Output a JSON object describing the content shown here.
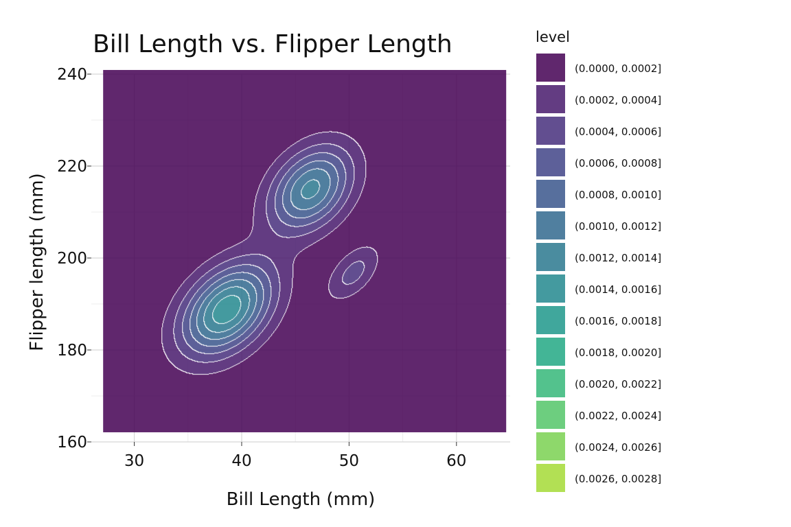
{
  "chart_data": {
    "type": "contour",
    "title": "Bill Length vs. Flipper Length",
    "xlabel": "Bill Length (mm)",
    "ylabel": "Flipper length (mm)",
    "xlim": [
      26,
      65
    ],
    "ylim": [
      160,
      240
    ],
    "xticks": [
      30,
      40,
      50,
      60
    ],
    "yticks": [
      160,
      180,
      200,
      220,
      240
    ],
    "grid": true,
    "density_extent": {
      "x": [
        27.1,
        64.6
      ],
      "y": [
        162.1,
        240.9
      ]
    },
    "legend": {
      "title": "level",
      "position": "right",
      "entries": [
        {
          "label": "(0.0000, 0.0002]",
          "color": "#440154"
        },
        {
          "label": "(0.0002, 0.0004]",
          "color": "#481a6c"
        },
        {
          "label": "(0.0004, 0.0006]",
          "color": "#472f7d"
        },
        {
          "label": "(0.0006, 0.0008]",
          "color": "#414487"
        },
        {
          "label": "(0.0008, 0.0010]",
          "color": "#39568c"
        },
        {
          "label": "(0.0010, 0.0012]",
          "color": "#31688e"
        },
        {
          "label": "(0.0012, 0.0014]",
          "color": "#2a788e"
        },
        {
          "label": "(0.0014, 0.0016]",
          "color": "#23888e"
        },
        {
          "label": "(0.0016, 0.0018]",
          "color": "#1f988b"
        },
        {
          "label": "(0.0018, 0.0020]",
          "color": "#22a884"
        },
        {
          "label": "(0.0020, 0.0022]",
          "color": "#35b779"
        },
        {
          "label": "(0.0022, 0.0024]",
          "color": "#54c568"
        },
        {
          "label": "(0.0024, 0.0026]",
          "color": "#7ad151"
        },
        {
          "label": "(0.0026, 0.0028]",
          "color": "#a5db36"
        }
      ]
    },
    "density_peaks": [
      {
        "x": 38.6,
        "y": 188.8,
        "sx": 3.0,
        "sy": 7.0,
        "rho": 0.4,
        "weight": 0.55
      },
      {
        "x": 46.4,
        "y": 215.0,
        "sx": 2.7,
        "sy": 6.5,
        "rho": 0.35,
        "weight": 0.45
      },
      {
        "x": 50.4,
        "y": 196.8,
        "sx": 1.7,
        "sy": 4.2,
        "rho": 0.55,
        "weight": 0.17
      }
    ],
    "fill_opacity": 0.85
  }
}
